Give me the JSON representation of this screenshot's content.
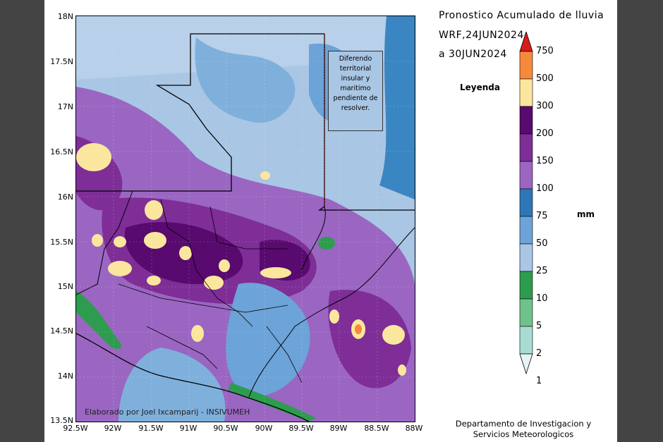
{
  "title": {
    "line1": "Pronostico Acumulado de lluvia",
    "line2": "WRF,24JUN2024",
    "line3": "a 30JUN2024"
  },
  "legend": {
    "title": "Leyenda",
    "unit": "mm",
    "levels": [
      "750",
      "500",
      "300",
      "200",
      "150",
      "100",
      "75",
      "50",
      "25",
      "10",
      "5",
      "2",
      "1"
    ],
    "colors": [
      "#d71a1a",
      "#f58a3c",
      "#fbe69e",
      "#580a6e",
      "#7e2e96",
      "#9a66c2",
      "#2d77b8",
      "#6ca3d8",
      "#a9c6e4",
      "#2e9c4e",
      "#6fc38a",
      "#a8dcd2",
      "#e8f3f6"
    ]
  },
  "map": {
    "dispute_note": "Diferendo territorial insular y maritimo pendiente de resolver.",
    "credit": "Elaborado por Joel Ixcamparij - INSIVUMEH",
    "y_ticks": [
      "18N",
      "17.5N",
      "17N",
      "16.5N",
      "16N",
      "15.5N",
      "15N",
      "14.5N",
      "14N",
      "13.5N"
    ],
    "x_ticks": [
      "92.5W",
      "92W",
      "91.5W",
      "91W",
      "90.5W",
      "90W",
      "89.5W",
      "89W",
      "88.5W",
      "88W"
    ]
  },
  "footer": {
    "line1": "Departamento de Investigacion y",
    "line2": "Servicios Meteorologicos"
  }
}
